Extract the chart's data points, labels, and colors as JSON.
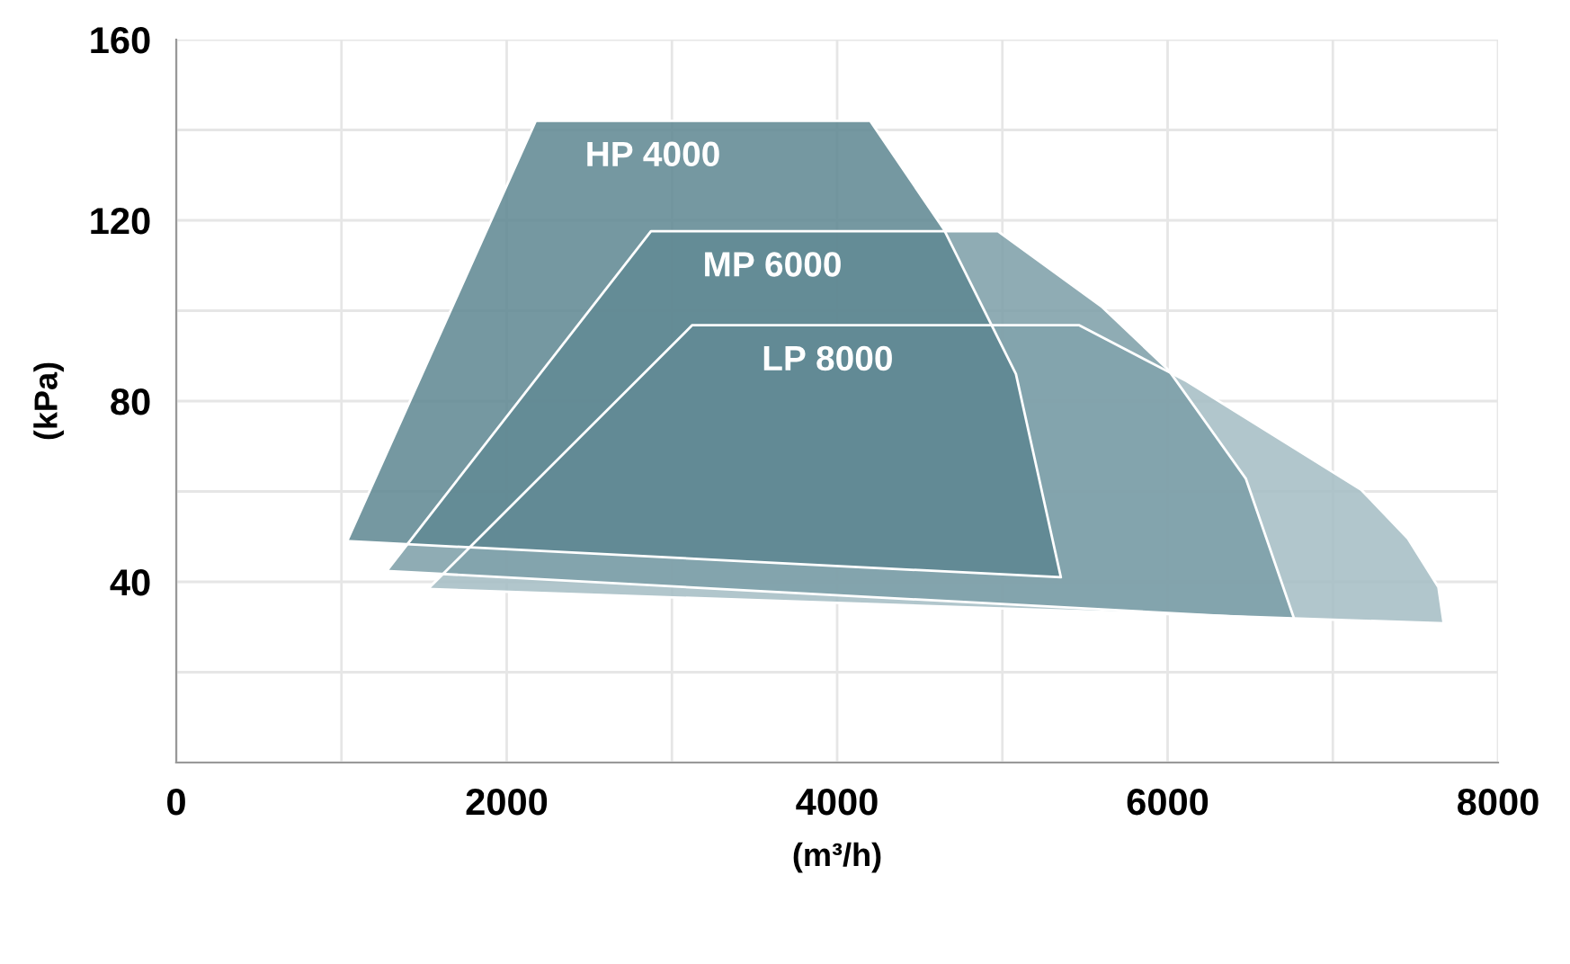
{
  "chart_data": {
    "type": "area",
    "xlabel": "(m³/h)",
    "ylabel": "(kPa)",
    "xlim": [
      0,
      8000
    ],
    "ylim": [
      0,
      160
    ],
    "xticks": [
      0,
      {
        "value": 1000,
        "label": null
      },
      2000,
      {
        "value": 3000,
        "label": null
      },
      4000,
      {
        "value": 5000,
        "label": null
      },
      6000,
      {
        "value": 7000,
        "label": null
      },
      8000
    ],
    "yticks": [
      {
        "value": 0,
        "label": null
      },
      {
        "value": 20,
        "label": null
      },
      40,
      {
        "value": 60,
        "label": null
      },
      80,
      {
        "value": 100,
        "label": null
      },
      120,
      {
        "value": 140,
        "label": null
      },
      160
    ],
    "grid": true,
    "legend": false,
    "series": [
      {
        "name": "LP 8000",
        "color": "#a3bcc3",
        "x": [
          1523,
          3123,
          5463,
          6115,
          7171,
          7454,
          7639,
          7671
        ],
        "values": [
          38.4,
          96.8,
          96.8,
          84.4,
          60.4,
          49.6,
          38.8,
          30.8
        ]
      },
      {
        "name": "MP 6000",
        "color": "#7b9ea7",
        "x": [
          1273,
          2873,
          4973,
          5604,
          6007,
          6474,
          6768
        ],
        "values": [
          42.4,
          117.6,
          117.6,
          100.8,
          86.8,
          62.8,
          31.6
        ]
      },
      {
        "name": "HP 4000",
        "color": "#5d8690",
        "x": [
          1034,
          2176,
          4200,
          4646,
          5082,
          5354
        ],
        "values": [
          49,
          142,
          142,
          118,
          86,
          41
        ]
      }
    ]
  }
}
